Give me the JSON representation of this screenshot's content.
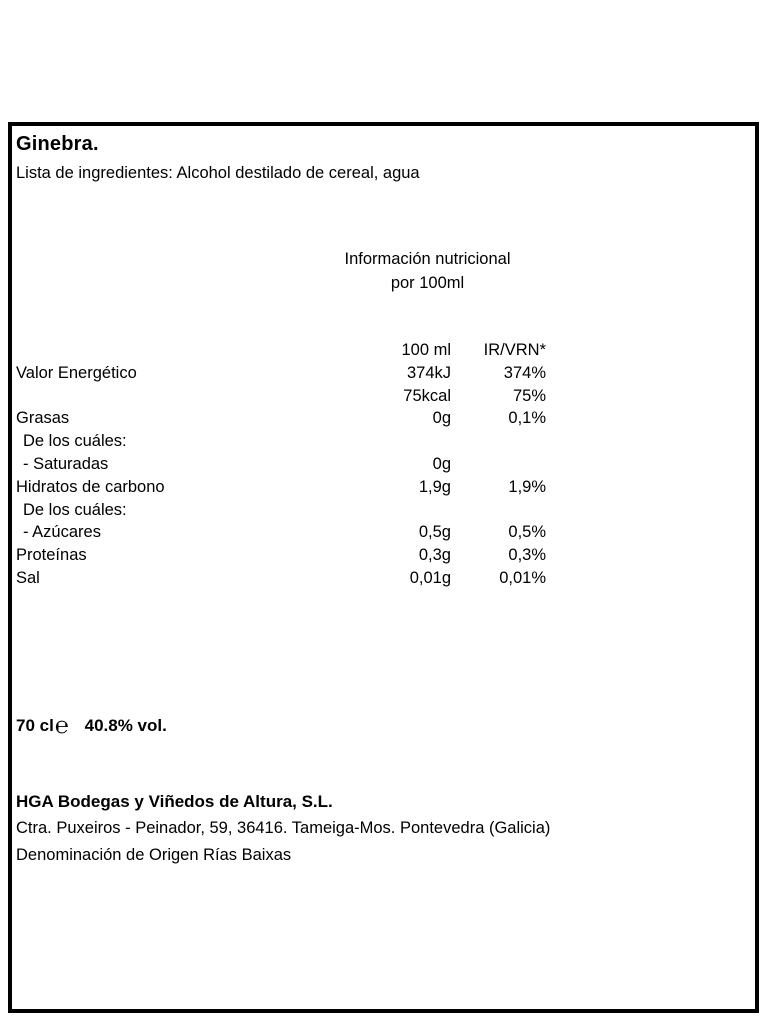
{
  "label": {
    "title": "Ginebra.",
    "ingredients": "Lista de ingredientes: Alcohol destilado de cereal, agua",
    "nutrition": {
      "heading_line1": "Información nutricional",
      "heading_line2": "por 100ml",
      "columns": {
        "amount": "100 ml",
        "ri": "IR/VRN*"
      },
      "rows": [
        {
          "label": "Valor  Energético",
          "amount": "374kJ",
          "ri": "374%"
        },
        {
          "label": "",
          "amount": "75kcal",
          "ri": "75%"
        },
        {
          "label": "Grasas",
          "amount": "0g",
          "ri": "0,1%"
        },
        {
          "label": "De los cuáles:",
          "amount": "",
          "ri": ""
        },
        {
          "label": "- Saturadas",
          "amount": "0g",
          "ri": ""
        },
        {
          "label": "Hidratos  de  carbono",
          "amount": "1,9g",
          "ri": "1,9%"
        },
        {
          "label": "De los cuáles:",
          "amount": "",
          "ri": ""
        },
        {
          "label": "- Azúcares",
          "amount": "0,5g",
          "ri": "0,5%"
        },
        {
          "label": "Proteínas",
          "amount": "0,3g",
          "ri": "0,3%"
        },
        {
          "label": "Sal",
          "amount": "0,01g",
          "ri": "0,01%"
        }
      ]
    },
    "volume_text": "70 cl",
    "estimated_mark": "℮",
    "abv_text": "40.8% vol.",
    "producer_name": "HGA Bodegas y Viñedos de Altura, S.L.",
    "producer_address": "Ctra. Puxeiros - Peinador, 59, 36416. Tameiga-Mos. Pontevedra (Galicia)",
    "origin_text": "Denominación de Origen Rías Baixas"
  }
}
